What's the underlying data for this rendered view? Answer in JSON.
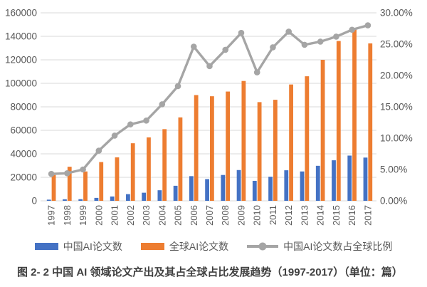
{
  "chart_data": {
    "type": "bar",
    "subtype": "grouped-bars-with-line-overlay",
    "title": "",
    "categories": [
      "1997",
      "1998",
      "1999",
      "2000",
      "2001",
      "2002",
      "2003",
      "2004",
      "2005",
      "2006",
      "2007",
      "2008",
      "2009",
      "2010",
      "2011",
      "2012",
      "2013",
      "2014",
      "2015",
      "2016",
      "2017"
    ],
    "series": [
      {
        "name": "中国AI论文数",
        "type": "bar",
        "axis": "left",
        "color": "#4472C4",
        "values": [
          1000,
          1300,
          1400,
          2500,
          3700,
          5700,
          6900,
          9000,
          12800,
          21000,
          18500,
          22000,
          26200,
          17000,
          20500,
          26000,
          25000,
          29800,
          34500,
          38500,
          36800
        ]
      },
      {
        "name": "全球AI论文数",
        "type": "bar",
        "axis": "left",
        "color": "#ED7D31",
        "values": [
          22000,
          29000,
          25000,
          33000,
          37000,
          49000,
          54000,
          61000,
          71000,
          90000,
          89000,
          93000,
          102000,
          84000,
          86000,
          99000,
          106000,
          120000,
          136000,
          147000,
          134000
        ]
      },
      {
        "name": "中国AI论文数占全球比例",
        "type": "line",
        "axis": "right",
        "color": "#A5A5A5",
        "values_percent": [
          4.3,
          4.4,
          5.0,
          8.0,
          10.4,
          12.2,
          12.8,
          15.4,
          18.3,
          24.6,
          21.5,
          24.1,
          26.8,
          20.5,
          24.5,
          27.0,
          24.9,
          25.4,
          26.2,
          27.3,
          28.0
        ]
      }
    ],
    "left_axis": {
      "min": 0,
      "max": 160000,
      "step": 20000,
      "tick_labels": [
        "0",
        "20000",
        "40000",
        "60000",
        "80000",
        "100000",
        "120000",
        "140000",
        "160000"
      ]
    },
    "right_axis": {
      "min": 0,
      "max": 30,
      "step": 5,
      "tick_labels": [
        "0.00%",
        "5.00%",
        "10.00%",
        "15.00%",
        "20.00%",
        "25.00%",
        "30.00%"
      ]
    },
    "grid": true,
    "gridline_color": "#D9D9D9",
    "tick_text_color": "#595959",
    "legend_position": "bottom",
    "xlabel": "",
    "ylabel": ""
  },
  "legend": {
    "items": [
      {
        "label": "中国AI论文数",
        "swatch": "blue-bar"
      },
      {
        "label": "全球AI论文数",
        "swatch": "orange-bar"
      },
      {
        "label": "中国AI论文数占全球比例",
        "swatch": "gray-line-with-dot"
      }
    ]
  },
  "caption": "图 2- 2 中国 AI 领域论文产出及其占全球占比发展趋势（1997-2017）（单位：篇）"
}
